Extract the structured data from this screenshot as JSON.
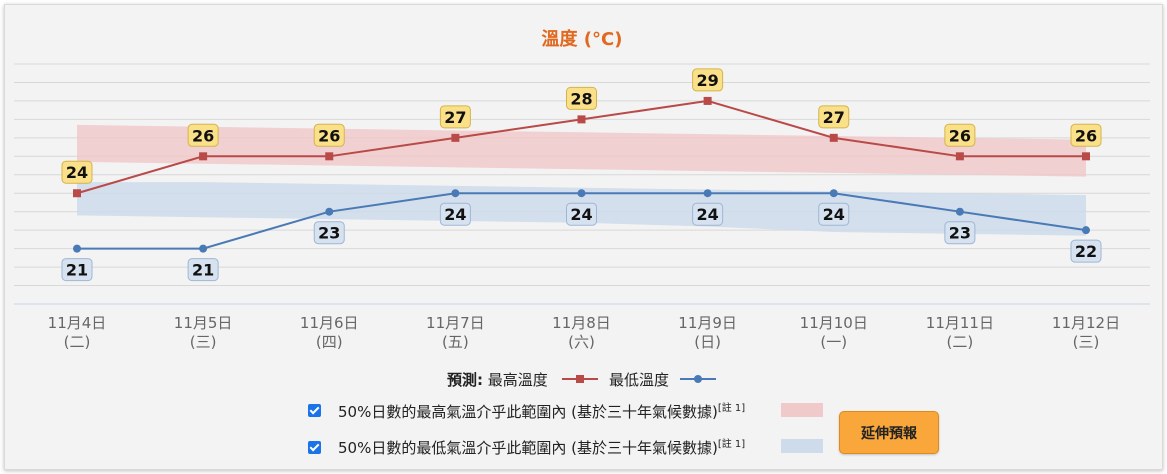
{
  "chart_data": {
    "type": "line",
    "title": "溫度 (°C)",
    "categories": [
      {
        "date": "11月4日",
        "weekday": "(二)"
      },
      {
        "date": "11月5日",
        "weekday": "(三)"
      },
      {
        "date": "11月6日",
        "weekday": "(四)"
      },
      {
        "date": "11月7日",
        "weekday": "(五)"
      },
      {
        "date": "11月8日",
        "weekday": "(六)"
      },
      {
        "date": "11月9日",
        "weekday": "(日)"
      },
      {
        "date": "11月10日",
        "weekday": "(一)"
      },
      {
        "date": "11月11日",
        "weekday": "(二)"
      },
      {
        "date": "11月12日",
        "weekday": "(三)"
      }
    ],
    "series": [
      {
        "name": "最高溫度",
        "color": "#b94a48",
        "marker": "square",
        "label_bg": "#fbe08a",
        "label_border": "#d4b44a",
        "values": [
          24,
          26,
          26,
          27,
          28,
          29,
          27,
          26,
          26
        ]
      },
      {
        "name": "最低溫度",
        "color": "#4a7ab5",
        "marker": "circle",
        "label_bg": "#d6e2f0",
        "label_border": "#9fb6d4",
        "values": [
          21,
          21,
          23,
          24,
          24,
          24,
          24,
          23,
          22
        ]
      }
    ],
    "bands": [
      {
        "color": "#f0c9cb",
        "lower": [
          25.7,
          25.6,
          25.5,
          25.4,
          25.3,
          25.2,
          25.1,
          25.0,
          24.9
        ],
        "upper": [
          27.7,
          27.6,
          27.5,
          27.4,
          27.3,
          27.2,
          27.1,
          27.0,
          26.9
        ]
      },
      {
        "color": "#cddbea",
        "lower": [
          22.8,
          22.7,
          22.6,
          22.5,
          22.4,
          22.2,
          21.9,
          21.8,
          21.7
        ],
        "upper": [
          24.6,
          24.6,
          24.5,
          24.4,
          24.3,
          24.2,
          24.1,
          24.0,
          23.9
        ]
      }
    ],
    "ylim": [
      18,
      31
    ],
    "grid": true
  },
  "legend": {
    "forecast_label": "預測:",
    "max_label": "最高溫度",
    "min_label": "最低溫度",
    "band_max_text": "50%日數的最高氣溫介乎此範圍內 (基於三十年氣候數據)",
    "band_min_text": "50%日數的最低氣溫介乎此範圍內 (基於三十年氣候數據)",
    "note_ref": "[註 1]"
  },
  "button": {
    "extend_label": "延伸預報"
  }
}
